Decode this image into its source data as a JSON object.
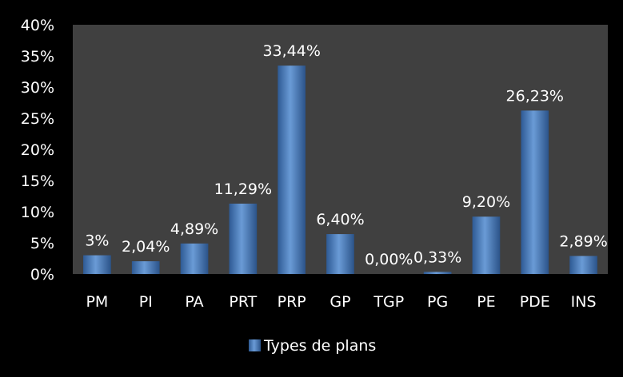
{
  "chart_data": {
    "type": "bar",
    "title": "",
    "xlabel": "",
    "ylabel": "",
    "categories": [
      "PM",
      "PI",
      "PA",
      "PRT",
      "PRP",
      "GP",
      "TGP",
      "PG",
      "PE",
      "PDE",
      "INS"
    ],
    "series": [
      {
        "name": "Types de plans",
        "values": [
          3,
          2.04,
          4.89,
          11.29,
          33.44,
          6.4,
          0.0,
          0.33,
          9.2,
          26.23,
          2.89
        ],
        "data_labels": [
          "3%",
          "2,04%",
          "4,89%",
          "11,29%",
          "33,44%",
          "6,40%",
          "0,00%",
          "0,33%",
          "9,20%",
          "26,23%",
          "2,89%"
        ]
      }
    ],
    "ylim": [
      0,
      40
    ],
    "y_ticks": [
      "0%",
      "5%",
      "10%",
      "15%",
      "20%",
      "25%",
      "30%",
      "35%",
      "40%"
    ],
    "grid": false,
    "legend_position": "bottom",
    "colors": {
      "background": "#000000",
      "plot_area": "#404040",
      "bar": "#4f81bd",
      "text": "#ffffff"
    }
  }
}
